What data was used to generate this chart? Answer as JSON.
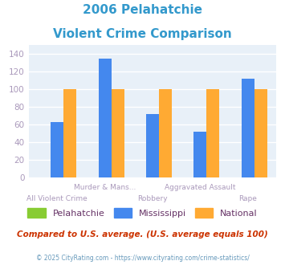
{
  "title_line1": "2006 Pelahatchie",
  "title_line2": "Violent Crime Comparison",
  "title_color": "#3399cc",
  "series": [
    "Pelahatchie",
    "Mississippi",
    "National"
  ],
  "colors": [
    "#88cc33",
    "#4488ee",
    "#ffaa33"
  ],
  "values": {
    "Pelahatchie": [
      0,
      0,
      0,
      0,
      0
    ],
    "Mississippi": [
      63,
      135,
      72,
      52,
      112
    ],
    "National": [
      100,
      100,
      100,
      100,
      100
    ]
  },
  "n_cats": 5,
  "cat_labels_top": [
    "",
    "Murder & Mans...",
    "",
    "Aggravated Assault",
    ""
  ],
  "cat_labels_bot": [
    "All Violent Crime",
    "",
    "Robbery",
    "",
    "Rape"
  ],
  "ylim": [
    0,
    150
  ],
  "yticks": [
    0,
    20,
    40,
    60,
    80,
    100,
    120,
    140
  ],
  "plot_bg": "#e8f0f8",
  "fig_bg": "#ffffff",
  "footer_text": "Compared to U.S. average. (U.S. average equals 100)",
  "footer_color": "#cc3300",
  "credit_text": "© 2025 CityRating.com - https://www.cityrating.com/crime-statistics/",
  "credit_color": "#6699bb",
  "grid_color": "#ffffff",
  "tick_color": "#aa99bb",
  "legend_text_color": "#663366",
  "bar_width": 0.27
}
